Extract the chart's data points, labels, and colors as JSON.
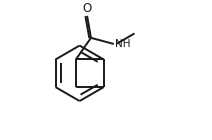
{
  "bg_color": "#ffffff",
  "line_color": "#1a1a1a",
  "line_width": 1.4,
  "text_color": "#1a1a1a",
  "O_label": "O",
  "NH_label": "NH",
  "figsize": [
    2.12,
    1.4
  ],
  "dpi": 100,
  "xlim": [
    0.0,
    1.0
  ],
  "ylim": [
    0.0,
    1.0
  ]
}
